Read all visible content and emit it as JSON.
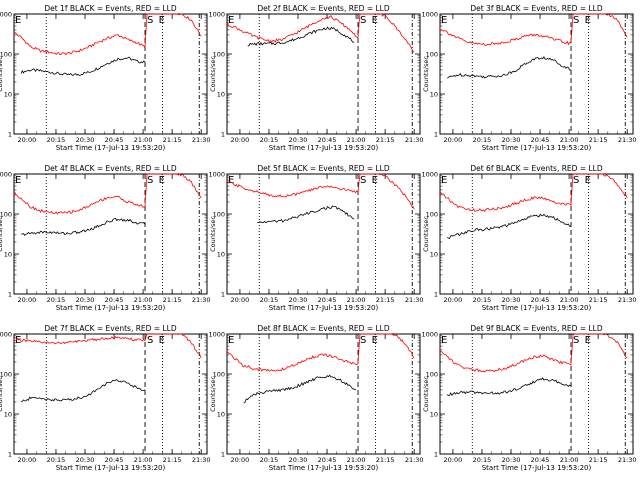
{
  "figure": {
    "xlabel": "Start Time (17-Jul-13 19:53:20)",
    "ylabel": "Counts/sec",
    "x_tick_labels": [
      "20:00",
      "20:15",
      "20:30",
      "20:45",
      "21:00",
      "21:15",
      "21:30"
    ],
    "y_tick_labels": [
      "1",
      "10",
      "100",
      "1000"
    ],
    "marker_labels": {
      "start": "S",
      "end": "E"
    },
    "colors": {
      "events": "#000000",
      "lld": "#ff0000",
      "axes": "#000000"
    }
  },
  "chart_data": [
    {
      "type": "line",
      "title": "Det 1f BLACK = Events, RED = LLD",
      "ylim": [
        1,
        1000
      ],
      "yscale": "log",
      "series": [
        {
          "name": "Events",
          "x": [
            "19:57",
            "20:02",
            "20:07",
            "20:12",
            "20:17",
            "20:22",
            "20:27",
            "20:32",
            "20:37",
            "20:42",
            "20:47",
            "20:52",
            "20:57",
            "21:01"
          ],
          "values": [
            35,
            40,
            38,
            35,
            32,
            30,
            31,
            35,
            45,
            60,
            75,
            80,
            65,
            62
          ]
        },
        {
          "name": "LLD",
          "x": [
            "19:53",
            "19:57",
            "20:02",
            "20:07",
            "20:12",
            "20:17",
            "20:22",
            "20:27",
            "20:32",
            "20:37",
            "20:42",
            "20:47",
            "20:52",
            "20:57",
            "21:01",
            "21:02",
            "21:06",
            "21:10",
            "21:15",
            "21:20",
            "21:25",
            "21:30"
          ],
          "values": [
            360,
            260,
            150,
            120,
            110,
            100,
            105,
            120,
            150,
            200,
            250,
            300,
            230,
            190,
            150,
            1000,
            1100,
            1150,
            1150,
            1000,
            700,
            280
          ]
        }
      ]
    },
    {
      "type": "line",
      "title": "Det 2f BLACK = Events, RED = LLD",
      "ylim": [
        1,
        1000
      ],
      "yscale": "log",
      "series": [
        {
          "name": "Events",
          "x": [
            "20:04",
            "20:09",
            "20:14",
            "20:19",
            "20:24",
            "20:29",
            "20:34",
            "20:39",
            "20:44",
            "20:49",
            "20:54",
            "20:59"
          ],
          "values": [
            170,
            180,
            180,
            185,
            200,
            240,
            300,
            370,
            440,
            420,
            300,
            200
          ]
        },
        {
          "name": "LLD",
          "x": [
            "19:53",
            "19:57",
            "20:02",
            "20:07",
            "20:12",
            "20:17",
            "20:22",
            "20:27",
            "20:32",
            "20:37",
            "20:42",
            "20:47",
            "20:52",
            "20:57",
            "21:01",
            "21:02",
            "21:06",
            "21:10",
            "21:15",
            "21:20",
            "21:25",
            "21:30"
          ],
          "values": [
            550,
            480,
            360,
            280,
            230,
            210,
            230,
            300,
            400,
            550,
            750,
            850,
            600,
            400,
            250,
            1100,
            1150,
            1100,
            900,
            500,
            250,
            110
          ]
        }
      ]
    },
    {
      "type": "line",
      "title": "Det 3f BLACK = Events, RED = LLD",
      "ylim": [
        1,
        1000
      ],
      "yscale": "log",
      "series": [
        {
          "name": "Events",
          "x": [
            "19:57",
            "20:02",
            "20:07",
            "20:12",
            "20:17",
            "20:22",
            "20:27",
            "20:32",
            "20:37",
            "20:42",
            "20:47",
            "20:52",
            "20:57",
            "21:01"
          ],
          "values": [
            25,
            30,
            30,
            28,
            27,
            28,
            30,
            38,
            55,
            75,
            80,
            70,
            50,
            40
          ]
        },
        {
          "name": "LLD",
          "x": [
            "19:53",
            "19:57",
            "20:02",
            "20:07",
            "20:12",
            "20:17",
            "20:22",
            "20:27",
            "20:32",
            "20:37",
            "20:42",
            "20:47",
            "20:52",
            "20:57",
            "21:01",
            "21:02",
            "21:06",
            "21:10",
            "21:15",
            "21:20",
            "21:25",
            "21:30"
          ],
          "values": [
            450,
            350,
            260,
            200,
            180,
            175,
            180,
            200,
            230,
            280,
            300,
            280,
            230,
            200,
            180,
            1000,
            1150,
            1200,
            1150,
            1000,
            700,
            260
          ]
        }
      ]
    },
    {
      "type": "line",
      "title": "Det 4f BLACK = Events, RED = LLD",
      "ylim": [
        1,
        1000
      ],
      "yscale": "log",
      "series": [
        {
          "name": "Events",
          "x": [
            "19:57",
            "20:02",
            "20:07",
            "20:12",
            "20:17",
            "20:22",
            "20:27",
            "20:32",
            "20:37",
            "20:42",
            "20:47",
            "20:52",
            "20:57",
            "21:01"
          ],
          "values": [
            30,
            33,
            35,
            35,
            33,
            33,
            35,
            40,
            50,
            65,
            75,
            70,
            60,
            55
          ]
        },
        {
          "name": "LLD",
          "x": [
            "19:53",
            "19:57",
            "20:02",
            "20:07",
            "20:12",
            "20:17",
            "20:22",
            "20:27",
            "20:32",
            "20:37",
            "20:42",
            "20:47",
            "20:52",
            "20:57",
            "21:01",
            "21:02",
            "21:06",
            "21:10",
            "21:15",
            "21:20",
            "21:25",
            "21:30"
          ],
          "values": [
            350,
            250,
            150,
            120,
            110,
            105,
            110,
            125,
            160,
            210,
            260,
            270,
            200,
            170,
            150,
            1000,
            1100,
            1150,
            1100,
            950,
            600,
            250
          ]
        }
      ]
    },
    {
      "type": "line",
      "title": "Det 5f BLACK = Events, RED = LLD",
      "ylim": [
        1,
        1000
      ],
      "yscale": "log",
      "series": [
        {
          "name": "Events",
          "x": [
            "20:09",
            "20:14",
            "20:19",
            "20:24",
            "20:29",
            "20:34",
            "20:39",
            "20:44",
            "20:49",
            "20:54",
            "20:59"
          ],
          "values": [
            60,
            65,
            65,
            70,
            85,
            100,
            120,
            140,
            150,
            110,
            75
          ]
        },
        {
          "name": "LLD",
          "x": [
            "19:53",
            "19:57",
            "20:02",
            "20:07",
            "20:12",
            "20:17",
            "20:22",
            "20:27",
            "20:32",
            "20:37",
            "20:42",
            "20:47",
            "20:52",
            "20:57",
            "21:01",
            "21:02",
            "21:06",
            "21:10",
            "21:15",
            "21:20",
            "21:25",
            "21:30"
          ],
          "values": [
            650,
            550,
            450,
            380,
            320,
            290,
            280,
            300,
            340,
            400,
            480,
            500,
            420,
            380,
            350,
            1100,
            1150,
            1100,
            900,
            550,
            300,
            130
          ]
        }
      ]
    },
    {
      "type": "line",
      "title": "Det 6f BLACK = Events, RED = LLD",
      "ylim": [
        1,
        1000
      ],
      "yscale": "log",
      "series": [
        {
          "name": "Events",
          "x": [
            "19:57",
            "20:02",
            "20:07",
            "20:12",
            "20:17",
            "20:22",
            "20:27",
            "20:32",
            "20:37",
            "20:42",
            "20:47",
            "20:52",
            "20:57",
            "21:01"
          ],
          "values": [
            25,
            30,
            35,
            40,
            42,
            45,
            50,
            60,
            75,
            90,
            95,
            80,
            60,
            50
          ]
        },
        {
          "name": "LLD",
          "x": [
            "19:53",
            "19:57",
            "20:02",
            "20:07",
            "20:12",
            "20:17",
            "20:22",
            "20:27",
            "20:32",
            "20:37",
            "20:42",
            "20:47",
            "20:52",
            "20:57",
            "21:01",
            "21:02",
            "21:06",
            "21:10",
            "21:15",
            "21:20",
            "21:25",
            "21:30"
          ],
          "values": [
            350,
            250,
            160,
            130,
            125,
            125,
            135,
            150,
            180,
            220,
            260,
            240,
            200,
            180,
            170,
            1000,
            1100,
            1150,
            1100,
            900,
            550,
            250
          ]
        }
      ]
    },
    {
      "type": "line",
      "title": "Det 7f BLACK = Events, RED = LLD",
      "ylim": [
        1,
        1000
      ],
      "yscale": "log",
      "series": [
        {
          "name": "Events",
          "x": [
            "19:57",
            "20:02",
            "20:07",
            "20:12",
            "20:17",
            "20:22",
            "20:27",
            "20:32",
            "20:37",
            "20:42",
            "20:47",
            "20:52",
            "20:57",
            "21:01"
          ],
          "values": [
            20,
            25,
            25,
            23,
            22,
            23,
            25,
            30,
            45,
            60,
            70,
            60,
            45,
            40
          ]
        },
        {
          "name": "LLD",
          "x": [
            "19:53",
            "19:57",
            "20:02",
            "20:07",
            "20:12",
            "20:17",
            "20:22",
            "20:27",
            "20:32",
            "20:37",
            "20:42",
            "20:47",
            "20:52",
            "20:57",
            "21:01",
            "21:02",
            "21:06",
            "21:10",
            "21:15",
            "21:20",
            "21:25",
            "21:30"
          ],
          "values": [
            750,
            700,
            650,
            620,
            600,
            600,
            620,
            650,
            700,
            750,
            800,
            800,
            750,
            700,
            700,
            1100,
            1150,
            1200,
            1150,
            1000,
            600,
            250
          ]
        }
      ]
    },
    {
      "type": "line",
      "title": "Det 8f BLACK = Events, RED = LLD",
      "ylim": [
        1,
        1000
      ],
      "yscale": "log",
      "series": [
        {
          "name": "Events",
          "x": [
            "20:02",
            "20:07",
            "20:12",
            "20:17",
            "20:22",
            "20:27",
            "20:32",
            "20:37",
            "20:42",
            "20:47",
            "20:52",
            "20:57",
            "21:00"
          ],
          "values": [
            20,
            30,
            35,
            38,
            40,
            45,
            55,
            70,
            85,
            90,
            70,
            50,
            40
          ]
        },
        {
          "name": "LLD",
          "x": [
            "19:53",
            "19:57",
            "20:02",
            "20:07",
            "20:12",
            "20:17",
            "20:22",
            "20:27",
            "20:32",
            "20:37",
            "20:42",
            "20:47",
            "20:52",
            "20:57",
            "21:01",
            "21:02",
            "21:06",
            "21:10",
            "21:15",
            "21:20",
            "21:25",
            "21:30"
          ],
          "values": [
            400,
            250,
            160,
            140,
            125,
            120,
            130,
            160,
            200,
            260,
            300,
            280,
            230,
            190,
            170,
            1000,
            1100,
            1150,
            1100,
            950,
            600,
            250
          ]
        }
      ]
    },
    {
      "type": "line",
      "title": "Det 9f BLACK = Events, RED = LLD",
      "ylim": [
        1,
        1000
      ],
      "yscale": "log",
      "series": [
        {
          "name": "Events",
          "x": [
            "19:57",
            "20:02",
            "20:07",
            "20:12",
            "20:17",
            "20:22",
            "20:27",
            "20:32",
            "20:37",
            "20:42",
            "20:47",
            "20:52",
            "20:57",
            "21:01"
          ],
          "values": [
            30,
            33,
            35,
            35,
            33,
            33,
            35,
            40,
            50,
            65,
            75,
            70,
            55,
            50
          ]
        },
        {
          "name": "LLD",
          "x": [
            "19:53",
            "19:57",
            "20:02",
            "20:07",
            "20:12",
            "20:17",
            "20:22",
            "20:27",
            "20:32",
            "20:37",
            "20:42",
            "20:47",
            "20:52",
            "20:57",
            "21:01",
            "21:02",
            "21:06",
            "21:10",
            "21:15",
            "21:20",
            "21:25",
            "21:30"
          ],
          "values": [
            400,
            280,
            170,
            140,
            125,
            120,
            125,
            140,
            170,
            220,
            270,
            280,
            220,
            190,
            170,
            1000,
            1100,
            1150,
            1100,
            950,
            600,
            250
          ]
        }
      ]
    }
  ]
}
